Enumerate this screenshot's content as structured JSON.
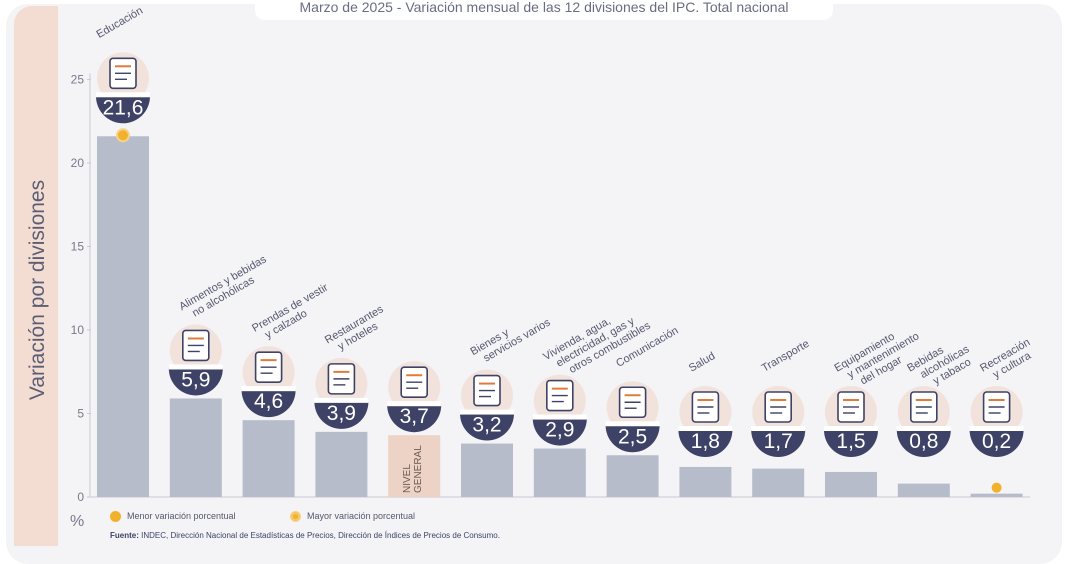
{
  "chart_data": {
    "type": "bar",
    "title": "Marzo de 2025 - Variación mensual de las 12 divisiones del IPC. Total nacional",
    "ylabel": "Variación por divisiones",
    "yunit": "%",
    "ylim": [
      0,
      25
    ],
    "yticks": [
      0,
      5,
      10,
      15,
      20,
      25
    ],
    "categories": [
      "Educación",
      "Alimentos y bebidas no alcohólicas",
      "Prendas de vestir y calzado",
      "Restaurantes y hoteles",
      "Nivel general",
      "Bienes y servicios varios",
      "Vivienda, agua, electricidad, gas y otros combustibles",
      "Comunicación",
      "Salud",
      "Transporte",
      "Equipamiento y mantenimiento del hogar",
      "Bebidas alcohólicas y tabaco",
      "Recreación y cultura"
    ],
    "values": [
      21.6,
      5.9,
      4.6,
      3.9,
      3.7,
      3.2,
      2.9,
      2.5,
      1.8,
      1.7,
      1.5,
      0.8,
      0.2
    ],
    "value_labels": [
      "21,6",
      "5,9",
      "4,6",
      "3,9",
      "3,7",
      "3,2",
      "2,9",
      "2,5",
      "1,8",
      "1,7",
      "1,5",
      "0,8",
      "0,2"
    ],
    "category_label_lines": [
      [
        "Educación"
      ],
      [
        "Alimentos y bebidas",
        "no alcohólicas"
      ],
      [
        "Prendas de vestir",
        "y calzado"
      ],
      [
        "Restaurantes",
        "y hoteles"
      ],
      [],
      [
        "Bienes y",
        "servicios varios"
      ],
      [
        "Vivienda, agua,",
        "electricidad, gas y",
        "otros combustibles"
      ],
      [
        "Comunicación"
      ],
      [
        "Salud"
      ],
      [
        "Transporte"
      ],
      [
        "Equipamiento",
        "y mantenimiento",
        "del hogar"
      ],
      [
        "Bebidas",
        "alcohólicas",
        "y tabaco"
      ],
      [
        "Recreación",
        "y cultura"
      ]
    ],
    "general_level_label": [
      "NIVEL",
      "GENERAL"
    ],
    "highlight": {
      "max_index": 0,
      "min_index": 12
    },
    "colors": {
      "bar": "#b7bccb",
      "general_bar": "#ecd3c6",
      "badge": "#3e4266",
      "marker": "#f2b12a",
      "icon_fill": "#f1e3dc",
      "icon_accent": "#e07b3c"
    },
    "legend": {
      "min_label": "Menor variación porcentual",
      "max_label": "Mayor variación porcentual"
    },
    "grid": false,
    "legend_position": "bottom-left"
  },
  "source": {
    "prefix": "Fuente:",
    "text": "INDEC, Dirección Nacional de Estadísticas de Precios, Dirección de Índices de Precios de Consumo."
  },
  "icons": [
    "book-icon",
    "food-icon",
    "shirt-icon",
    "cutlery-icon",
    "basket-icon",
    "scissors-icon",
    "bulb-icon",
    "phone-icon",
    "medical-cross-icon",
    "car-icon",
    "toolbox-icon",
    "glass-bottle-icon",
    "umbrella-icon"
  ]
}
